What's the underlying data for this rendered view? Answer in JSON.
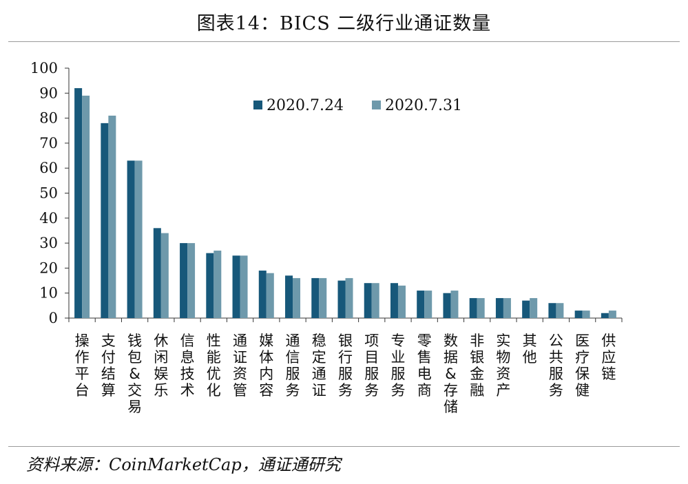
{
  "figure_title": "图表14：BICS 二级行业通证数量",
  "source": "资料来源：CoinMarketCap，通证通研究",
  "chart_data": {
    "type": "bar",
    "categories": [
      "操作平台",
      "支付结算",
      "钱包&交易",
      "休闲娱乐",
      "信息技术",
      "性能优化",
      "通证资管",
      "媒体内容",
      "通信服务",
      "稳定通证",
      "银行服务",
      "项目服务",
      "专业服务",
      "零售电商",
      "数据&存储",
      "非银金融",
      "实物资产",
      "其他",
      "公共服务",
      "医疗保健",
      "供应链"
    ],
    "series": [
      {
        "name": "2020.7.24",
        "color": "#17587a",
        "values": [
          92,
          78,
          63,
          36,
          30,
          26,
          25,
          19,
          17,
          16,
          15,
          14,
          14,
          11,
          10,
          8,
          8,
          7,
          6,
          3,
          2
        ]
      },
      {
        "name": "2020.7.31",
        "color": "#6e99ab",
        "values": [
          89,
          81,
          63,
          34,
          30,
          27,
          25,
          18,
          16,
          16,
          16,
          14,
          13,
          11,
          11,
          8,
          8,
          8,
          6,
          3,
          3
        ]
      }
    ],
    "ylim": [
      0,
      100
    ],
    "yticks": [
      0,
      10,
      20,
      30,
      40,
      50,
      60,
      70,
      80,
      90,
      100
    ],
    "xlabel": "",
    "ylabel": "",
    "legend_position": "top-center"
  }
}
